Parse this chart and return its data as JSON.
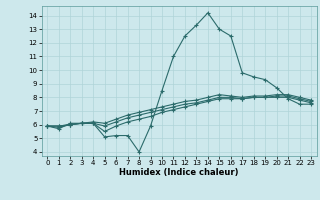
{
  "xlabel": "Humidex (Indice chaleur)",
  "ylabel": "",
  "bg_color": "#cde8ec",
  "grid_color": "#b0d4d8",
  "line_color": "#2b6b6b",
  "xlim": [
    -0.5,
    23.5
  ],
  "ylim": [
    3.7,
    14.7
  ],
  "yticks": [
    4,
    5,
    6,
    7,
    8,
    9,
    10,
    11,
    12,
    13,
    14
  ],
  "xticks": [
    0,
    1,
    2,
    3,
    4,
    5,
    6,
    7,
    8,
    9,
    10,
    11,
    12,
    13,
    14,
    15,
    16,
    17,
    18,
    19,
    20,
    21,
    22,
    23
  ],
  "series": [
    [
      5.9,
      5.7,
      6.1,
      6.1,
      6.1,
      5.1,
      5.2,
      5.2,
      4.0,
      5.9,
      8.5,
      11.0,
      12.5,
      13.3,
      14.2,
      13.0,
      12.5,
      9.8,
      9.5,
      9.3,
      8.7,
      7.9,
      7.5,
      7.5
    ],
    [
      5.9,
      5.8,
      6.0,
      6.1,
      6.1,
      5.5,
      5.9,
      6.2,
      6.4,
      6.6,
      6.9,
      7.1,
      7.3,
      7.5,
      7.7,
      7.9,
      7.9,
      7.9,
      8.0,
      8.0,
      8.0,
      8.0,
      7.8,
      7.6
    ],
    [
      5.9,
      5.9,
      6.0,
      6.1,
      6.1,
      5.9,
      6.2,
      6.5,
      6.7,
      6.9,
      7.1,
      7.3,
      7.5,
      7.6,
      7.8,
      8.0,
      8.0,
      7.9,
      8.0,
      8.0,
      8.1,
      8.1,
      7.9,
      7.7
    ],
    [
      5.9,
      5.9,
      6.0,
      6.1,
      6.2,
      6.1,
      6.4,
      6.7,
      6.9,
      7.1,
      7.3,
      7.5,
      7.7,
      7.8,
      8.0,
      8.2,
      8.1,
      8.0,
      8.1,
      8.1,
      8.2,
      8.2,
      8.0,
      7.8
    ]
  ],
  "marker": "+",
  "markersize": 3,
  "linewidth": 0.8
}
